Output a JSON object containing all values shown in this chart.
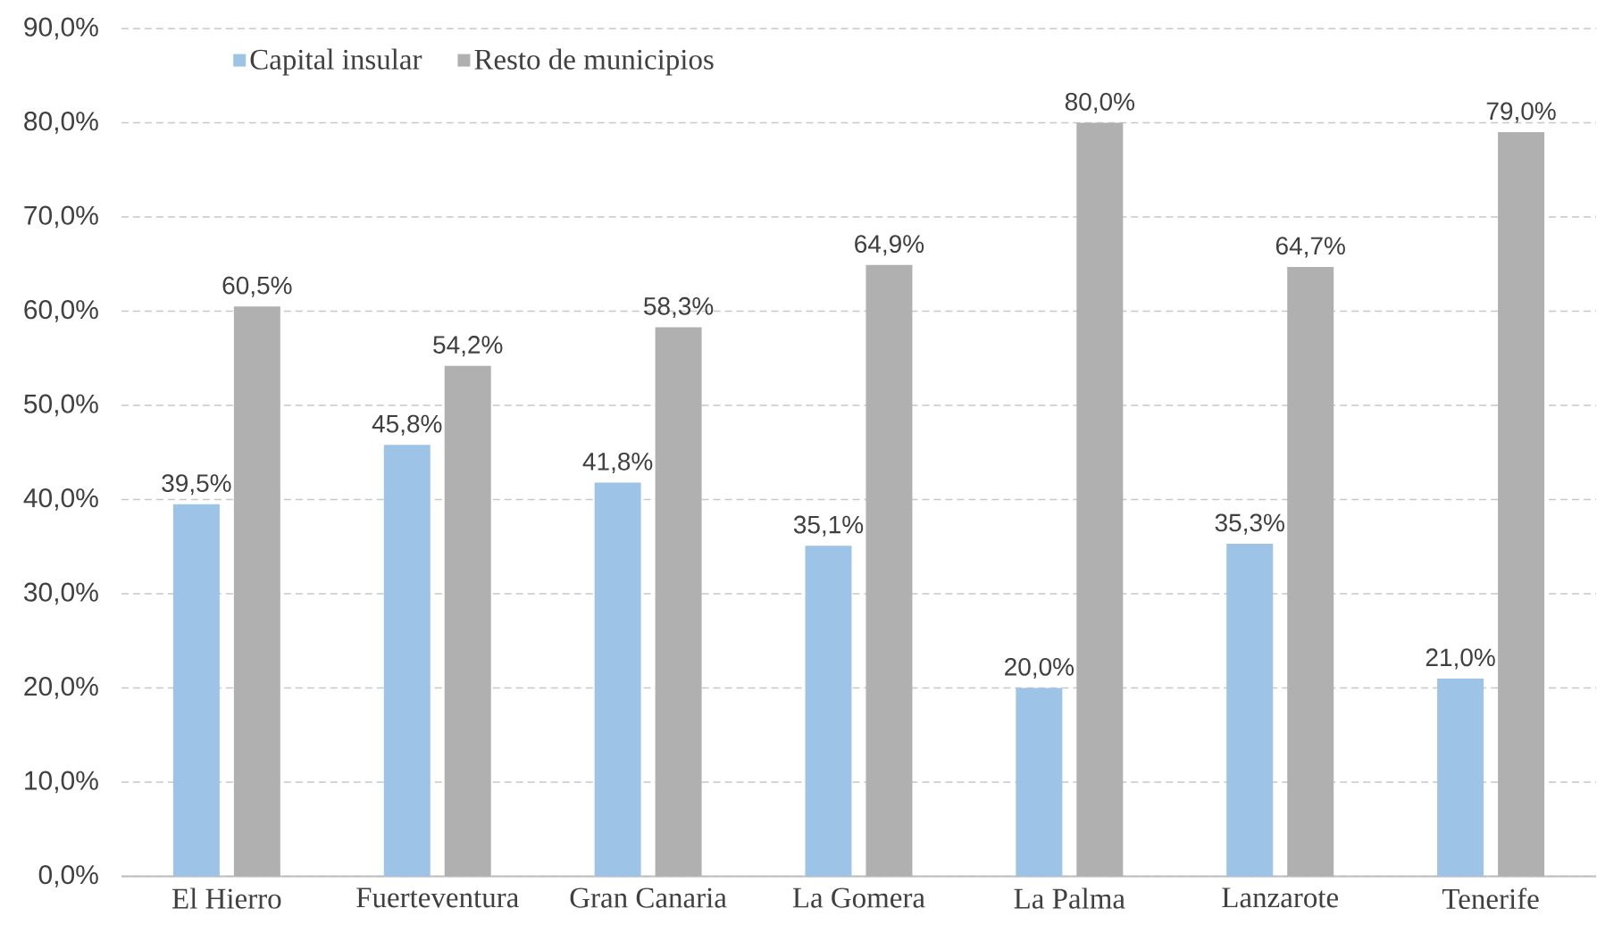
{
  "chart_data": {
    "type": "bar",
    "categories": [
      "El Hierro",
      "Fuerteventura",
      "Gran Canaria",
      "La Gomera",
      "La Palma",
      "Lanzarote",
      "Tenerife"
    ],
    "series": [
      {
        "name": "Capital insular",
        "color": "#9dc3e6",
        "values": [
          39.5,
          45.8,
          41.8,
          35.1,
          20.0,
          35.3,
          21.0
        ],
        "value_labels": [
          "39,5%",
          "45,8%",
          "41,8%",
          "35,1%",
          "20,0%",
          "35,3%",
          "21,0%"
        ]
      },
      {
        "name": "Resto de municipios",
        "color": "#b0b0b0",
        "values": [
          60.5,
          54.2,
          58.3,
          64.9,
          80.0,
          64.7,
          79.0
        ],
        "value_labels": [
          "60,5%",
          "54,2%",
          "58,3%",
          "64,9%",
          "80,0%",
          "64,7%",
          "79,0%"
        ]
      }
    ],
    "ylim": [
      0,
      90
    ],
    "yticks": [
      {
        "value": 0,
        "label": "0,0%"
      },
      {
        "value": 10,
        "label": "10,0%"
      },
      {
        "value": 20,
        "label": "20,0%"
      },
      {
        "value": 30,
        "label": "30,0%"
      },
      {
        "value": 40,
        "label": "40,0%"
      },
      {
        "value": 50,
        "label": "50,0%"
      },
      {
        "value": 60,
        "label": "60,0%"
      },
      {
        "value": 70,
        "label": "70,0%"
      },
      {
        "value": 80,
        "label": "80,0%"
      },
      {
        "value": 90,
        "label": "90,0%"
      }
    ],
    "grid": "y",
    "legend": "top left"
  }
}
